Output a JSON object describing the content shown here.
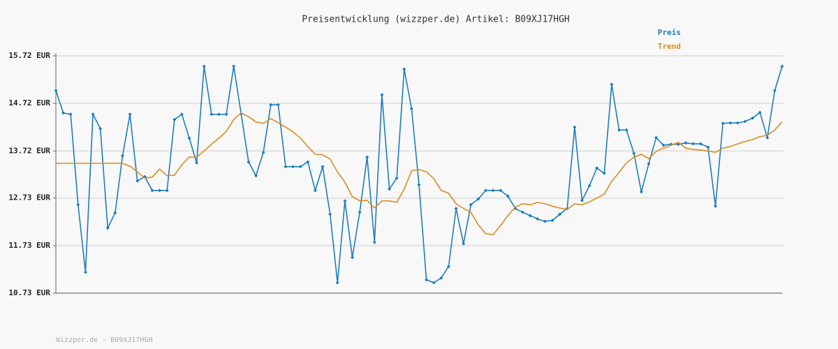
{
  "chart_data": {
    "type": "line",
    "title": "Preisentwicklung (wizzper.de) Artikel: B09XJ17HGH",
    "footer": "Wizzper.de - B09XJ17HGH",
    "ylim": [
      10.73,
      15.72
    ],
    "yticks": [
      {
        "value": 10.73,
        "label": "10.73 EUR"
      },
      {
        "value": 11.73,
        "label": "11.73 EUR"
      },
      {
        "value": 12.73,
        "label": "12.73 EUR"
      },
      {
        "value": 13.72,
        "label": "13.72 EUR"
      },
      {
        "value": 14.72,
        "label": "14.72 EUR"
      },
      {
        "value": 15.72,
        "label": "15.72 EUR"
      }
    ],
    "grid": true,
    "legend": "top-right",
    "series": [
      {
        "name": "Preis",
        "color": "#1b7dbc",
        "markers": true,
        "values": [
          14.99,
          14.52,
          14.49,
          12.59,
          11.17,
          14.49,
          14.19,
          12.1,
          12.42,
          13.62,
          14.49,
          13.09,
          13.18,
          12.89,
          12.89,
          12.89,
          14.38,
          14.49,
          13.99,
          13.47,
          15.5,
          14.49,
          14.49,
          14.49,
          15.5,
          14.5,
          13.49,
          13.2,
          13.69,
          14.69,
          14.69,
          13.39,
          13.39,
          13.39,
          13.49,
          12.89,
          13.39,
          12.39,
          10.95,
          12.67,
          11.48,
          12.43,
          13.59,
          11.8,
          14.9,
          12.92,
          13.15,
          15.44,
          14.61,
          13.01,
          11.01,
          10.95,
          11.05,
          11.29,
          12.51,
          11.77,
          12.59,
          12.71,
          12.89,
          12.89,
          12.89,
          12.77,
          12.51,
          12.43,
          12.36,
          12.29,
          12.24,
          12.26,
          12.39,
          12.51,
          14.22,
          12.68,
          12.99,
          13.36,
          13.25,
          15.12,
          14.16,
          14.16,
          13.67,
          12.86,
          13.45,
          14.0,
          13.84,
          13.86,
          13.86,
          13.89,
          13.87,
          13.87,
          13.8,
          12.56,
          14.3,
          14.31,
          14.31,
          14.34,
          14.41,
          14.53,
          14.0,
          14.99,
          15.5
        ]
      },
      {
        "name": "Trend",
        "color": "#dc8a1f",
        "markers": false,
        "values": [
          13.46,
          13.46,
          13.46,
          13.46,
          13.46,
          13.46,
          13.46,
          13.46,
          13.46,
          13.46,
          13.4,
          13.28,
          13.15,
          13.17,
          13.34,
          13.2,
          13.21,
          13.43,
          13.59,
          13.59,
          13.72,
          13.86,
          13.99,
          14.13,
          14.38,
          14.52,
          14.44,
          14.33,
          14.3,
          14.4,
          14.31,
          14.22,
          14.12,
          13.99,
          13.81,
          13.65,
          13.64,
          13.55,
          13.28,
          13.06,
          12.76,
          12.67,
          12.68,
          12.52,
          12.67,
          12.67,
          12.64,
          12.92,
          13.3,
          13.33,
          13.28,
          13.14,
          12.89,
          12.83,
          12.61,
          12.51,
          12.43,
          12.17,
          11.98,
          11.96,
          12.15,
          12.36,
          12.54,
          12.61,
          12.59,
          12.64,
          12.61,
          12.56,
          12.52,
          12.49,
          12.61,
          12.59,
          12.65,
          12.73,
          12.81,
          13.08,
          13.27,
          13.47,
          13.59,
          13.65,
          13.56,
          13.71,
          13.78,
          13.84,
          13.9,
          13.78,
          13.75,
          13.74,
          13.72,
          13.69,
          13.78,
          13.81,
          13.87,
          13.92,
          13.96,
          14.02,
          14.05,
          14.16,
          14.33
        ]
      }
    ]
  }
}
